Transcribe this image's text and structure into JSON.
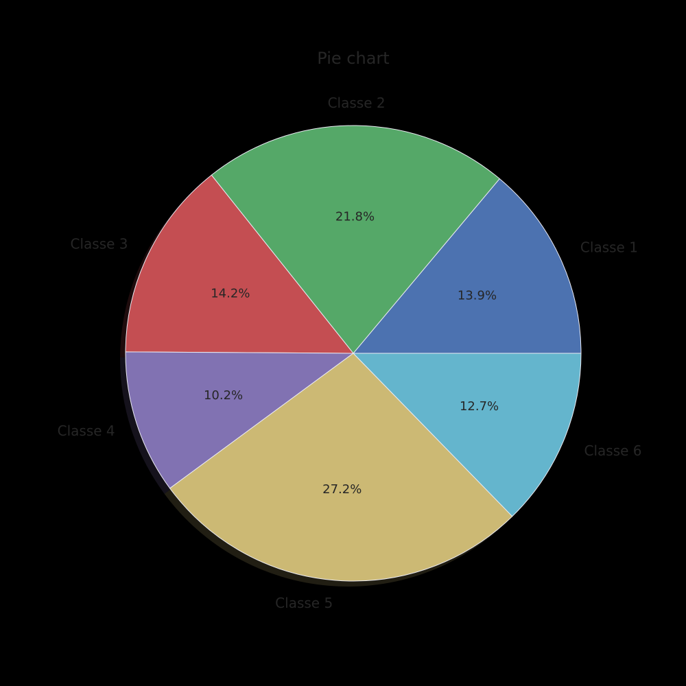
{
  "chart_data": {
    "type": "pie",
    "title": "Pie chart",
    "shadow": true,
    "start_angle_deg": 0,
    "direction": "counterclockwise",
    "slices": [
      {
        "label": "Classe 1",
        "value": 13.9,
        "pct_label": "13.9%",
        "color": "#4c72b0"
      },
      {
        "label": "Classe 2",
        "value": 21.8,
        "pct_label": "21.8%",
        "color": "#55a868"
      },
      {
        "label": "Classe 3",
        "value": 14.2,
        "pct_label": "14.2%",
        "color": "#c44e52"
      },
      {
        "label": "Classe 4",
        "value": 10.2,
        "pct_label": "10.2%",
        "color": "#8172b2"
      },
      {
        "label": "Classe 5",
        "value": 27.2,
        "pct_label": "27.2%",
        "color": "#ccb974"
      },
      {
        "label": "Classe 6",
        "value": 12.7,
        "pct_label": "12.7%",
        "color": "#64b5cd"
      }
    ]
  }
}
